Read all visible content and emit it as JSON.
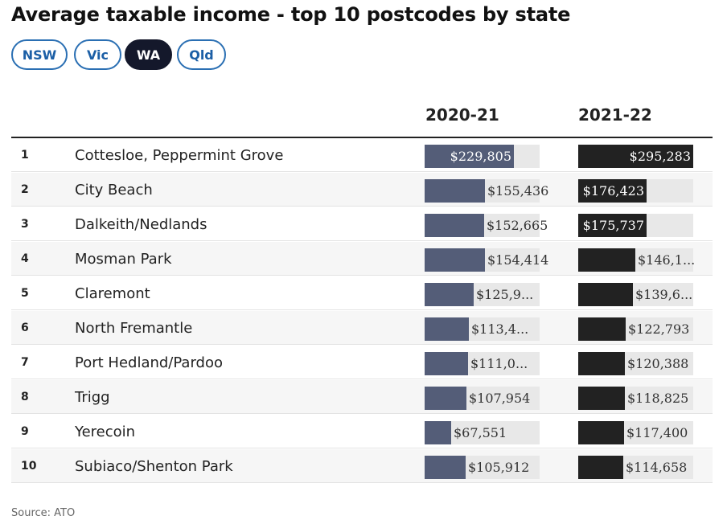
{
  "title": "Average taxable income - top 10 postcodes by state",
  "tabs": [
    {
      "label": "NSW",
      "active": false
    },
    {
      "label": "Vic",
      "active": false
    },
    {
      "label": "WA",
      "active": true
    },
    {
      "label": "Qld",
      "active": false
    }
  ],
  "source": "Source: ATO",
  "colors": {
    "series_2020_21": "#545d78",
    "series_2021_22": "#222222",
    "active_tab": "#14182b",
    "tab_border": "#2a6fb3"
  },
  "chart_data": {
    "type": "table",
    "title": "Average taxable income - top 10 postcodes by state",
    "columns": [
      "2020-21",
      "2021-22"
    ],
    "max": 295283,
    "rows": [
      {
        "rank": "1",
        "name": "Cottesloe, Peppermint Grove",
        "values": [
          229805,
          295283
        ],
        "labels": [
          "$229,805",
          "$295,283"
        ]
      },
      {
        "rank": "2",
        "name": "City Beach",
        "values": [
          155436,
          176423
        ],
        "labels": [
          "$155,436",
          "$176,423"
        ]
      },
      {
        "rank": "3",
        "name": "Dalkeith/Nedlands",
        "values": [
          152665,
          175737
        ],
        "labels": [
          "$152,665",
          "$175,737"
        ]
      },
      {
        "rank": "4",
        "name": "Mosman Park",
        "values": [
          154414,
          146100
        ],
        "labels": [
          "$154,414",
          "$146,1..."
        ]
      },
      {
        "rank": "5",
        "name": "Claremont",
        "values": [
          125900,
          139600
        ],
        "labels": [
          "$125,9...",
          "$139,6..."
        ]
      },
      {
        "rank": "6",
        "name": "North Fremantle",
        "values": [
          113400,
          122793
        ],
        "labels": [
          "$113,4...",
          "$122,793"
        ]
      },
      {
        "rank": "7",
        "name": "Port Hedland/Pardoo",
        "values": [
          111000,
          120388
        ],
        "labels": [
          "$111,0...",
          "$120,388"
        ]
      },
      {
        "rank": "8",
        "name": "Trigg",
        "values": [
          107954,
          118825
        ],
        "labels": [
          "$107,954",
          "$118,825"
        ]
      },
      {
        "rank": "9",
        "name": "Yerecoin",
        "values": [
          67551,
          117400
        ],
        "labels": [
          "$67,551",
          "$117,400"
        ]
      },
      {
        "rank": "10",
        "name": "Subiaco/Shenton Park",
        "values": [
          105912,
          114658
        ],
        "labels": [
          "$105,912",
          "$114,658"
        ]
      }
    ]
  }
}
